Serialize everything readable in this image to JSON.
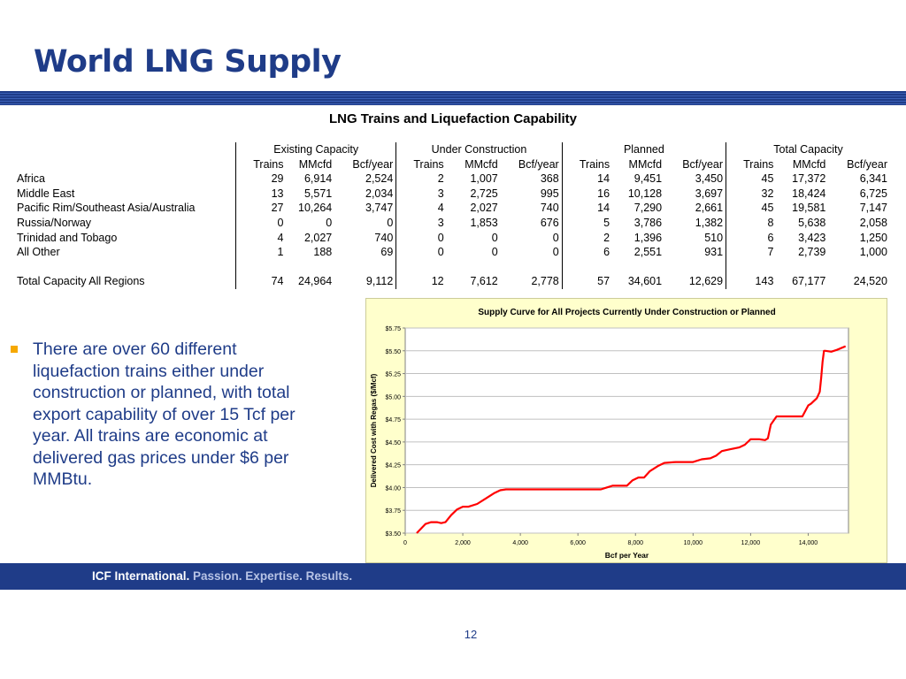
{
  "title": "World LNG Supply",
  "table": {
    "title": "LNG Trains and Liquefaction Capability",
    "groups": [
      "Existing Capacity",
      "Under Construction",
      "Planned",
      "Total Capacity"
    ],
    "subheaders": [
      "Trains",
      "MMcfd",
      "Bcf/year"
    ],
    "rows": [
      {
        "region": "Africa",
        "values": [
          "29",
          "6,914",
          "2,524",
          "2",
          "1,007",
          "368",
          "14",
          "9,451",
          "3,450",
          "45",
          "17,372",
          "6,341"
        ]
      },
      {
        "region": "Middle East",
        "values": [
          "13",
          "5,571",
          "2,034",
          "3",
          "2,725",
          "995",
          "16",
          "10,128",
          "3,697",
          "32",
          "18,424",
          "6,725"
        ]
      },
      {
        "region": "Pacific Rim/Southeast Asia/Australia",
        "values": [
          "27",
          "10,264",
          "3,747",
          "4",
          "2,027",
          "740",
          "14",
          "7,290",
          "2,661",
          "45",
          "19,581",
          "7,147"
        ]
      },
      {
        "region": "Russia/Norway",
        "values": [
          "0",
          "0",
          "0",
          "3",
          "1,853",
          "676",
          "5",
          "3,786",
          "1,382",
          "8",
          "5,638",
          "2,058"
        ]
      },
      {
        "region": "Trinidad and Tobago",
        "values": [
          "4",
          "2,027",
          "740",
          "0",
          "0",
          "0",
          "2",
          "1,396",
          "510",
          "6",
          "3,423",
          "1,250"
        ]
      },
      {
        "region": "All Other",
        "values": [
          "1",
          "188",
          "69",
          "0",
          "0",
          "0",
          "6",
          "2,551",
          "931",
          "7",
          "2,739",
          "1,000"
        ]
      }
    ],
    "total": {
      "region": "Total Capacity All Regions",
      "values": [
        "74",
        "24,964",
        "9,112",
        "12",
        "7,612",
        "2,778",
        "57",
        "34,601",
        "12,629",
        "143",
        "67,177",
        "24,520"
      ]
    }
  },
  "bullet": {
    "text": "There are over 60 different liquefaction trains either under construction or planned, with total export capability of  over 15 Tcf per year.  All trains are economic at delivered gas prices under $6 per MMBtu."
  },
  "footer": {
    "brand": "ICF International.",
    "tagline": "Passion. Expertise. Results."
  },
  "page_number": "12",
  "colors": {
    "title_blue": "#1f3c88",
    "bullet_orange": "#f6a800",
    "chart_background": "#ffffcc",
    "curve_red": "#ff0000"
  },
  "chart_data": {
    "type": "line",
    "title": "Supply Curve for All Projects Currently Under Construction or Planned",
    "xlabel": "Bcf per Year",
    "ylabel": "Delivered Cost with Regas ($/Mcf)",
    "xlim": [
      0,
      15400
    ],
    "ylim": [
      3.5,
      5.75
    ],
    "x_ticks": [
      0,
      2000,
      4000,
      6000,
      8000,
      10000,
      12000,
      14000
    ],
    "x_tick_labels": [
      "0",
      "2,000",
      "4,000",
      "6,000",
      "8,000",
      "10,000",
      "12,000",
      "14,000"
    ],
    "y_ticks": [
      3.5,
      3.75,
      4.0,
      4.25,
      4.5,
      4.75,
      5.0,
      5.25,
      5.5,
      5.75
    ],
    "y_tick_labels": [
      "$3.50",
      "$3.75",
      "$4.00",
      "$4.25",
      "$4.50",
      "$4.75",
      "$5.00",
      "$5.25",
      "$5.50",
      "$5.75"
    ],
    "grid": {
      "horizontal": true,
      "vertical": false
    },
    "series": [
      {
        "color": "#ff0000",
        "x": [
          400,
          700,
          900,
          1100,
          1250,
          1400,
          1600,
          1800,
          2000,
          2200,
          2500,
          2800,
          3100,
          3300,
          3500,
          4000,
          5000,
          6000,
          6800,
          7000,
          7200,
          7600,
          7700,
          7900,
          8100,
          8300,
          8500,
          8800,
          9000,
          9400,
          10000,
          10300,
          10600,
          10800,
          11000,
          11300,
          11600,
          11800,
          12000,
          12300,
          12500,
          12600,
          12700,
          12900,
          13600,
          13800,
          14000,
          14100,
          14300,
          14400,
          14450,
          14500,
          14550,
          14600,
          14800,
          15000,
          15300
        ],
        "y": [
          3.5,
          3.6,
          3.62,
          3.62,
          3.61,
          3.62,
          3.7,
          3.76,
          3.79,
          3.79,
          3.82,
          3.88,
          3.94,
          3.97,
          3.98,
          3.98,
          3.98,
          3.98,
          3.98,
          4.0,
          4.02,
          4.02,
          4.02,
          4.08,
          4.11,
          4.11,
          4.18,
          4.24,
          4.27,
          4.28,
          4.28,
          4.31,
          4.32,
          4.35,
          4.4,
          4.42,
          4.44,
          4.47,
          4.53,
          4.53,
          4.52,
          4.54,
          4.69,
          4.78,
          4.78,
          4.78,
          4.9,
          4.92,
          4.98,
          5.05,
          5.2,
          5.38,
          5.5,
          5.5,
          5.49,
          5.51,
          5.55
        ]
      }
    ]
  }
}
